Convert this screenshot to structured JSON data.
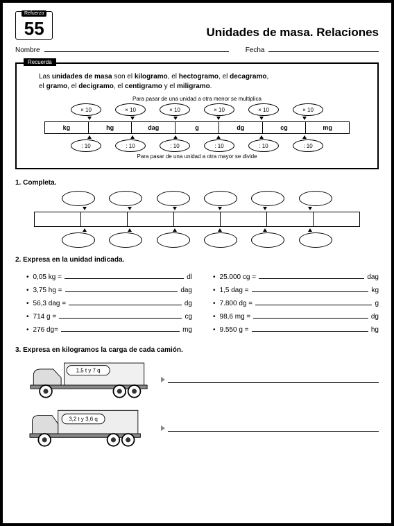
{
  "header": {
    "refuerzo_label": "Refuerzo",
    "number": "55",
    "title": "Unidades de masa. Relaciones"
  },
  "fields": {
    "nombre_label": "Nombre",
    "fecha_label": "Fecha"
  },
  "recuerda": {
    "tag": "Recuerda",
    "line1_pre": "Las ",
    "line1_b1": "unidades de masa",
    "line1_mid1": " son el ",
    "line1_b2": "kilogramo",
    "line1_mid2": ", el ",
    "line1_b3": "hectogramo",
    "line1_mid3": ", el ",
    "line1_b4": "decagramo",
    "line1_end": ",",
    "line2_pre": "el ",
    "line2_b1": "gramo",
    "line2_mid1": ", el ",
    "line2_b2": "decigramo",
    "line2_mid2": ", el ",
    "line2_b3": "centigramo",
    "line2_mid3": " y el ",
    "line2_b4": "miligramo",
    "line2_end": ".",
    "caption_top": "Para pasar de una unidad a otra menor se multiplica",
    "caption_bottom": "Para pasar de una unidad a otra mayor se divide",
    "mult": "× 10",
    "div": ": 10",
    "units": [
      "kg",
      "hg",
      "dag",
      "g",
      "dg",
      "cg",
      "mg"
    ]
  },
  "q1": {
    "num": "1.",
    "text": "Completa."
  },
  "q2": {
    "num": "2.",
    "text": "Expresa en la unidad indicada.",
    "left": [
      {
        "a": "0,05 kg =",
        "u": "dl"
      },
      {
        "a": "3,75 hg =",
        "u": "dag"
      },
      {
        "a": "56,3 dag =",
        "u": "dg"
      },
      {
        "a": "714 g =",
        "u": "cg"
      },
      {
        "a": "276 dg=",
        "u": "mg"
      }
    ],
    "right": [
      {
        "a": "25.000 cg =",
        "u": "dag"
      },
      {
        "a": "1,5 dag =",
        "u": "kg"
      },
      {
        "a": "7.800 dg =",
        "u": "g"
      },
      {
        "a": "98,6 mg =",
        "u": "dg"
      },
      {
        "a": "9.550 g =",
        "u": "hg"
      }
    ]
  },
  "q3": {
    "num": "3.",
    "text": "Expresa en kilogramos la carga de cada camión.",
    "truck1_label": "1,5 t y 7 q",
    "truck2_label": "3,2 t y 3,6 q"
  }
}
